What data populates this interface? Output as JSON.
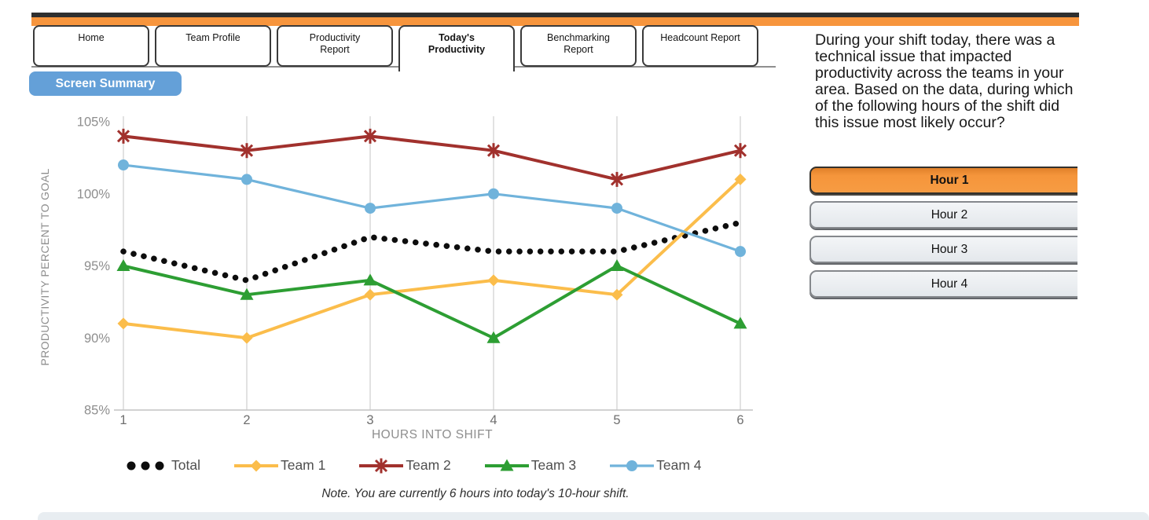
{
  "topbars": {
    "dark_color": "#2F2F2F",
    "orange_color": "#F7953D"
  },
  "tabs": [
    {
      "label": "Home",
      "active": false
    },
    {
      "label": "Team Profile",
      "active": false
    },
    {
      "label": "Productivity\nReport",
      "active": false
    },
    {
      "label": "Today's\nProductivity",
      "active": true
    },
    {
      "label": "Benchmarking\nReport",
      "active": false
    },
    {
      "label": "Headcount Report",
      "active": false
    }
  ],
  "screen_summary_label": "Screen Summary",
  "colors": {
    "screen_summary_blue": "#64A0D8",
    "selected_option_orange": "#F5953B",
    "option_gray": "#E9ECEF",
    "bottom_bar": "#E8EDF1",
    "gridline": "#CFCFCF",
    "axis_text": "#8E8E8E"
  },
  "chart_data": {
    "type": "line",
    "x": [
      1,
      2,
      3,
      4,
      5,
      6
    ],
    "xlabel": "HOURS INTO SHIFT",
    "ylabel": "PRODUCTIVITY PERCENT TO GOAL",
    "ylim": [
      85,
      105
    ],
    "yticks": [
      85,
      90,
      95,
      100,
      105
    ],
    "ytick_suffix": "%",
    "grid": "vertical-only",
    "legend_position": "bottom",
    "series": [
      {
        "name": "Total",
        "color": "#0D0D0D",
        "style": "dotted",
        "marker": "dot",
        "values": [
          96,
          94,
          97,
          96,
          96,
          98
        ]
      },
      {
        "name": "Team 1",
        "color": "#FBBD4B",
        "style": "solid",
        "marker": "diamond",
        "values": [
          91,
          90,
          93,
          94,
          93,
          101
        ]
      },
      {
        "name": "Team 2",
        "color": "#A1312D",
        "style": "solid",
        "marker": "asterisk",
        "values": [
          104,
          103,
          104,
          103,
          101,
          103
        ]
      },
      {
        "name": "Team 3",
        "color": "#2D9E33",
        "style": "solid",
        "marker": "triangle",
        "values": [
          95,
          93,
          94,
          90,
          95,
          91
        ]
      },
      {
        "name": "Team 4",
        "color": "#70B3DB",
        "style": "solid",
        "marker": "circle",
        "values": [
          102,
          101,
          99,
          100,
          99,
          96
        ]
      }
    ]
  },
  "note": "Note. You are currently 6 hours into today's 10-hour shift.",
  "question": {
    "text": "During your shift today, there was a technical issue that impacted productivity across the teams in your area. Based on the data, during which of the following hours of the shift did this issue most likely occur?",
    "options": [
      {
        "label": "Hour 1",
        "selected": true
      },
      {
        "label": "Hour 2",
        "selected": false
      },
      {
        "label": "Hour 3",
        "selected": false
      },
      {
        "label": "Hour 4",
        "selected": false
      }
    ]
  }
}
